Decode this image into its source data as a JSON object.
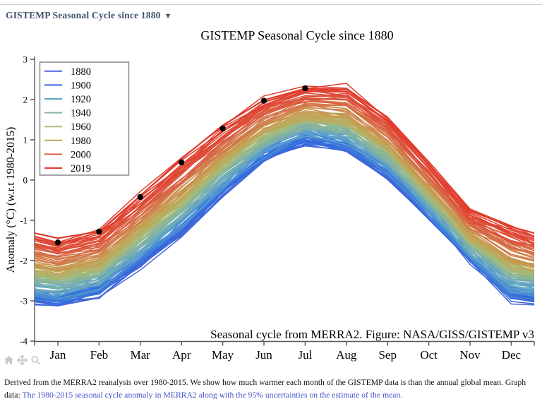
{
  "page": {
    "dropdown": {
      "label": "GISTEMP Seasonal Cycle since 1880",
      "caret": "▼",
      "color": "#44546a"
    },
    "toolbar": {
      "icons": [
        "home-icon",
        "pan-icon",
        "zoom-icon"
      ],
      "icon_color": "#c9c9c9"
    },
    "caption": {
      "text_plain": "Derived from the MERRA2 reanalysis over 1980-2015. We show how much warmer each month of the GISTEMP data is than the annual global mean. Graph data: ",
      "link_text": "The 1980-2015 seasonal cycle anomaly in MERRA2 along with the 95% uncertainties on the estimate of the mean.",
      "link_color": "#4355c8"
    }
  },
  "chart_data": {
    "type": "line",
    "title": "GISTEMP Seasonal Cycle since 1880",
    "xlabel": "",
    "ylabel": "Anomaly (°C) (w.r.t 1980-2015)",
    "annotation": "Seasonal cycle from MERRA2. Figure: NASA/GISS/GISTEMP v3",
    "categories": [
      "Jan",
      "Feb",
      "Mar",
      "Apr",
      "May",
      "Jun",
      "Jul",
      "Aug",
      "Sep",
      "Oct",
      "Nov",
      "Dec"
    ],
    "ylim": [
      -4,
      3
    ],
    "yticks": [
      3,
      2,
      1,
      0,
      -1,
      -2,
      -3,
      -4
    ],
    "grid": false,
    "legend_position": "upper-left",
    "years_range": [
      1880,
      2019
    ],
    "series": [
      {
        "name": "1880",
        "color": "#4a66d6",
        "values": [
          -3.05,
          -2.85,
          -2.1,
          -1.3,
          -0.35,
          0.5,
          0.95,
          0.75,
          0.1,
          -0.9,
          -2.0,
          -2.95
        ]
      },
      {
        "name": "1900",
        "color": "#3069df",
        "values": [
          -2.93,
          -2.72,
          -1.97,
          -1.16,
          -0.22,
          0.62,
          1.06,
          0.87,
          0.22,
          -0.8,
          -1.9,
          -2.81
        ]
      },
      {
        "name": "1920",
        "color": "#5aa2cd",
        "values": [
          -2.78,
          -2.57,
          -1.8,
          -0.99,
          -0.06,
          0.76,
          1.19,
          1.03,
          0.36,
          -0.67,
          -1.78,
          -2.64
        ]
      },
      {
        "name": "1940",
        "color": "#88b49c",
        "values": [
          -2.53,
          -2.3,
          -1.51,
          -0.69,
          0.22,
          1.01,
          1.42,
          1.29,
          0.61,
          -0.45,
          -1.58,
          -2.34
        ]
      },
      {
        "name": "1960",
        "color": "#a5bd78",
        "values": [
          -2.38,
          -2.14,
          -1.34,
          -0.52,
          0.38,
          1.16,
          1.55,
          1.45,
          0.75,
          -0.32,
          -1.46,
          -2.16
        ]
      },
      {
        "name": "1980",
        "color": "#c5a254",
        "values": [
          -2.23,
          -1.99,
          -1.18,
          -0.34,
          0.55,
          1.31,
          1.68,
          1.6,
          0.9,
          -0.19,
          -1.34,
          -1.99
        ]
      },
      {
        "name": "2000",
        "color": "#d96244",
        "values": [
          -1.85,
          -1.59,
          -0.76,
          0.09,
          0.95,
          1.68,
          2.01,
          1.99,
          1.26,
          0.14,
          -1.04,
          -1.55
        ]
      },
      {
        "name": "2019",
        "color": "#e23a2c",
        "values": [
          -1.55,
          -1.28,
          -0.42,
          0.44,
          1.28,
          1.97,
          2.28,
          2.3,
          1.55,
          0.4,
          -0.8,
          -1.2
        ]
      }
    ],
    "highlight_points": {
      "series": "2019",
      "months": [
        "Jan",
        "Feb",
        "Mar",
        "Apr",
        "May",
        "Jun",
        "Jul"
      ],
      "values": [
        -1.55,
        -1.28,
        -0.42,
        0.44,
        1.28,
        1.97,
        2.28
      ],
      "color": "#000000"
    }
  }
}
